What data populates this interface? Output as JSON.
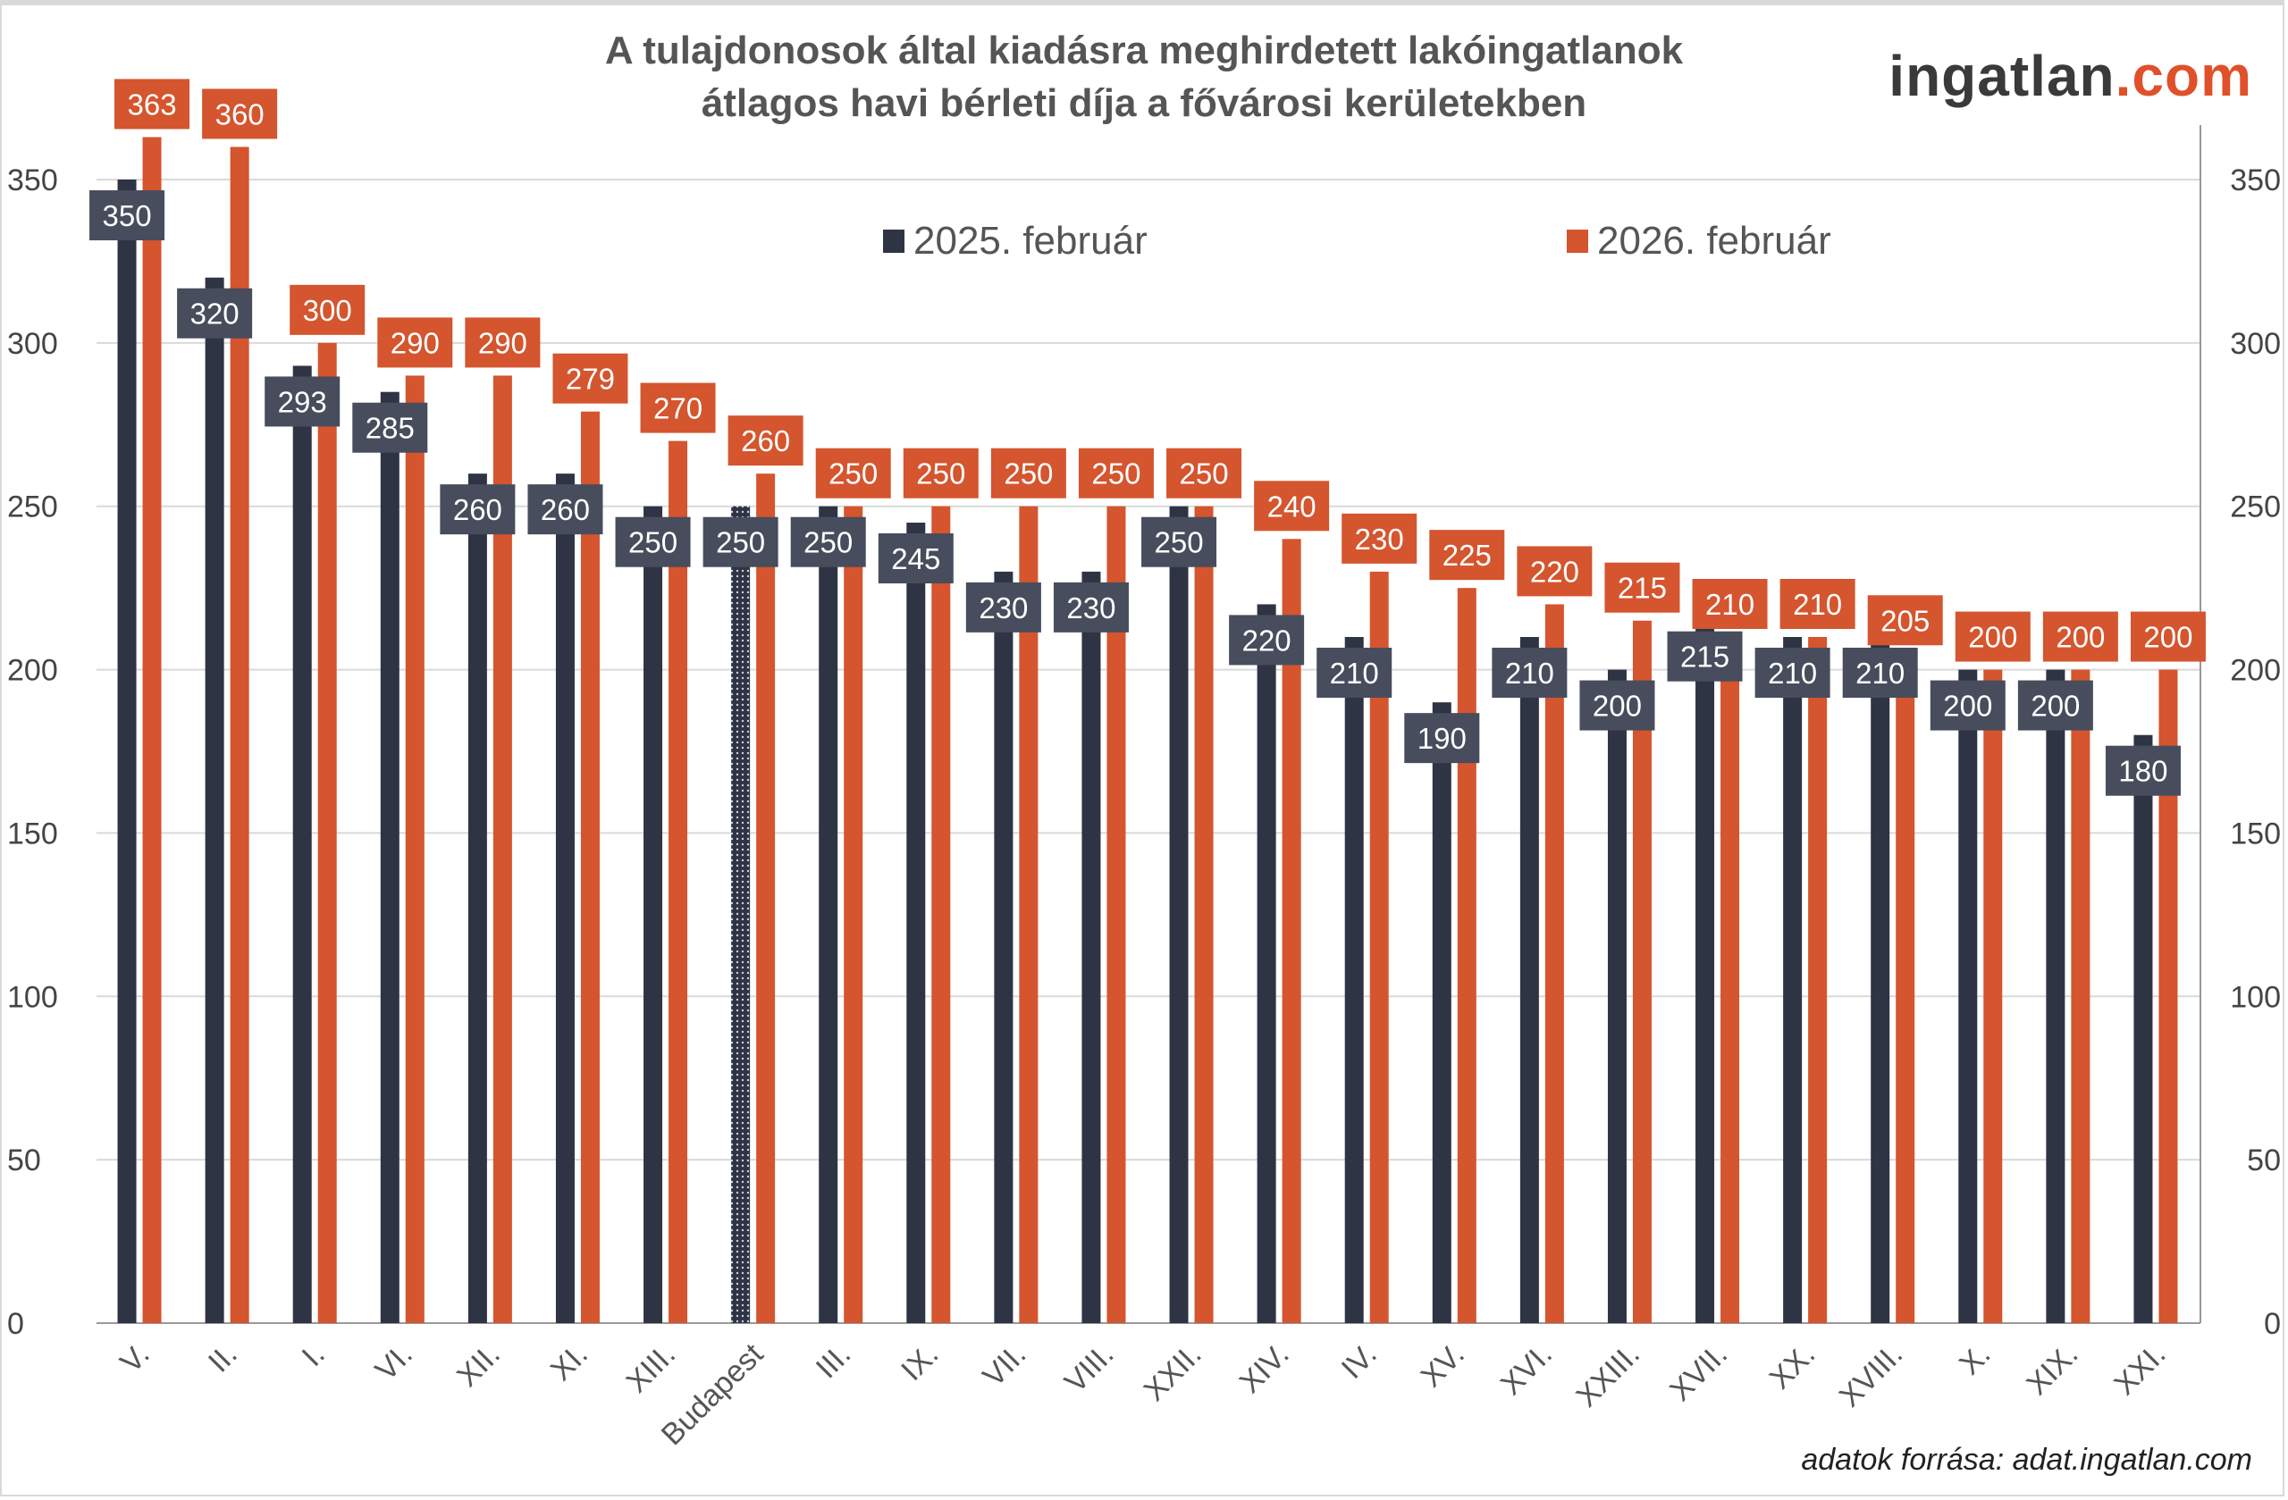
{
  "brand": {
    "prefix": "ingatlan",
    "suffix": ".com"
  },
  "source": "adatok forrása: adat.ingatlan.com",
  "colors": {
    "series2025": "#2e3444",
    "series2026": "#d4552e",
    "label2025": "#474d5c"
  },
  "chart_data": {
    "type": "bar",
    "title": "A tulajdonosok által kiadásra meghirdetett lakóingatlanok",
    "subtitle": "átlagos havi bérleti díja a fővárosi kerületekben",
    "categories": [
      "V.",
      "II.",
      "I.",
      "VI.",
      "XII.",
      "XI.",
      "XIII.",
      "Budapest",
      "III.",
      "IX.",
      "VII.",
      "VIII.",
      "XXII.",
      "XIV.",
      "IV.",
      "XV.",
      "XVI.",
      "XXIII.",
      "XVII.",
      "XX.",
      "XVIII.",
      "X.",
      "XIX.",
      "XXI."
    ],
    "series": [
      {
        "name": "2025. február",
        "values": [
          350,
          320,
          293,
          285,
          260,
          260,
          250,
          250,
          250,
          245,
          230,
          230,
          250,
          220,
          210,
          190,
          210,
          200,
          215,
          210,
          210,
          200,
          200,
          180
        ]
      },
      {
        "name": "2026. február",
        "values": [
          363,
          360,
          300,
          290,
          290,
          279,
          270,
          260,
          250,
          250,
          250,
          250,
          250,
          240,
          230,
          225,
          220,
          215,
          210,
          210,
          205,
          200,
          200,
          200
        ]
      }
    ],
    "ylim": [
      0,
      350
    ],
    "yticks": [
      0,
      50,
      100,
      150,
      200,
      250,
      300,
      350
    ],
    "secondary_axis": true,
    "grid": true,
    "legend": "top-center",
    "highlight_category": "Budapest"
  }
}
